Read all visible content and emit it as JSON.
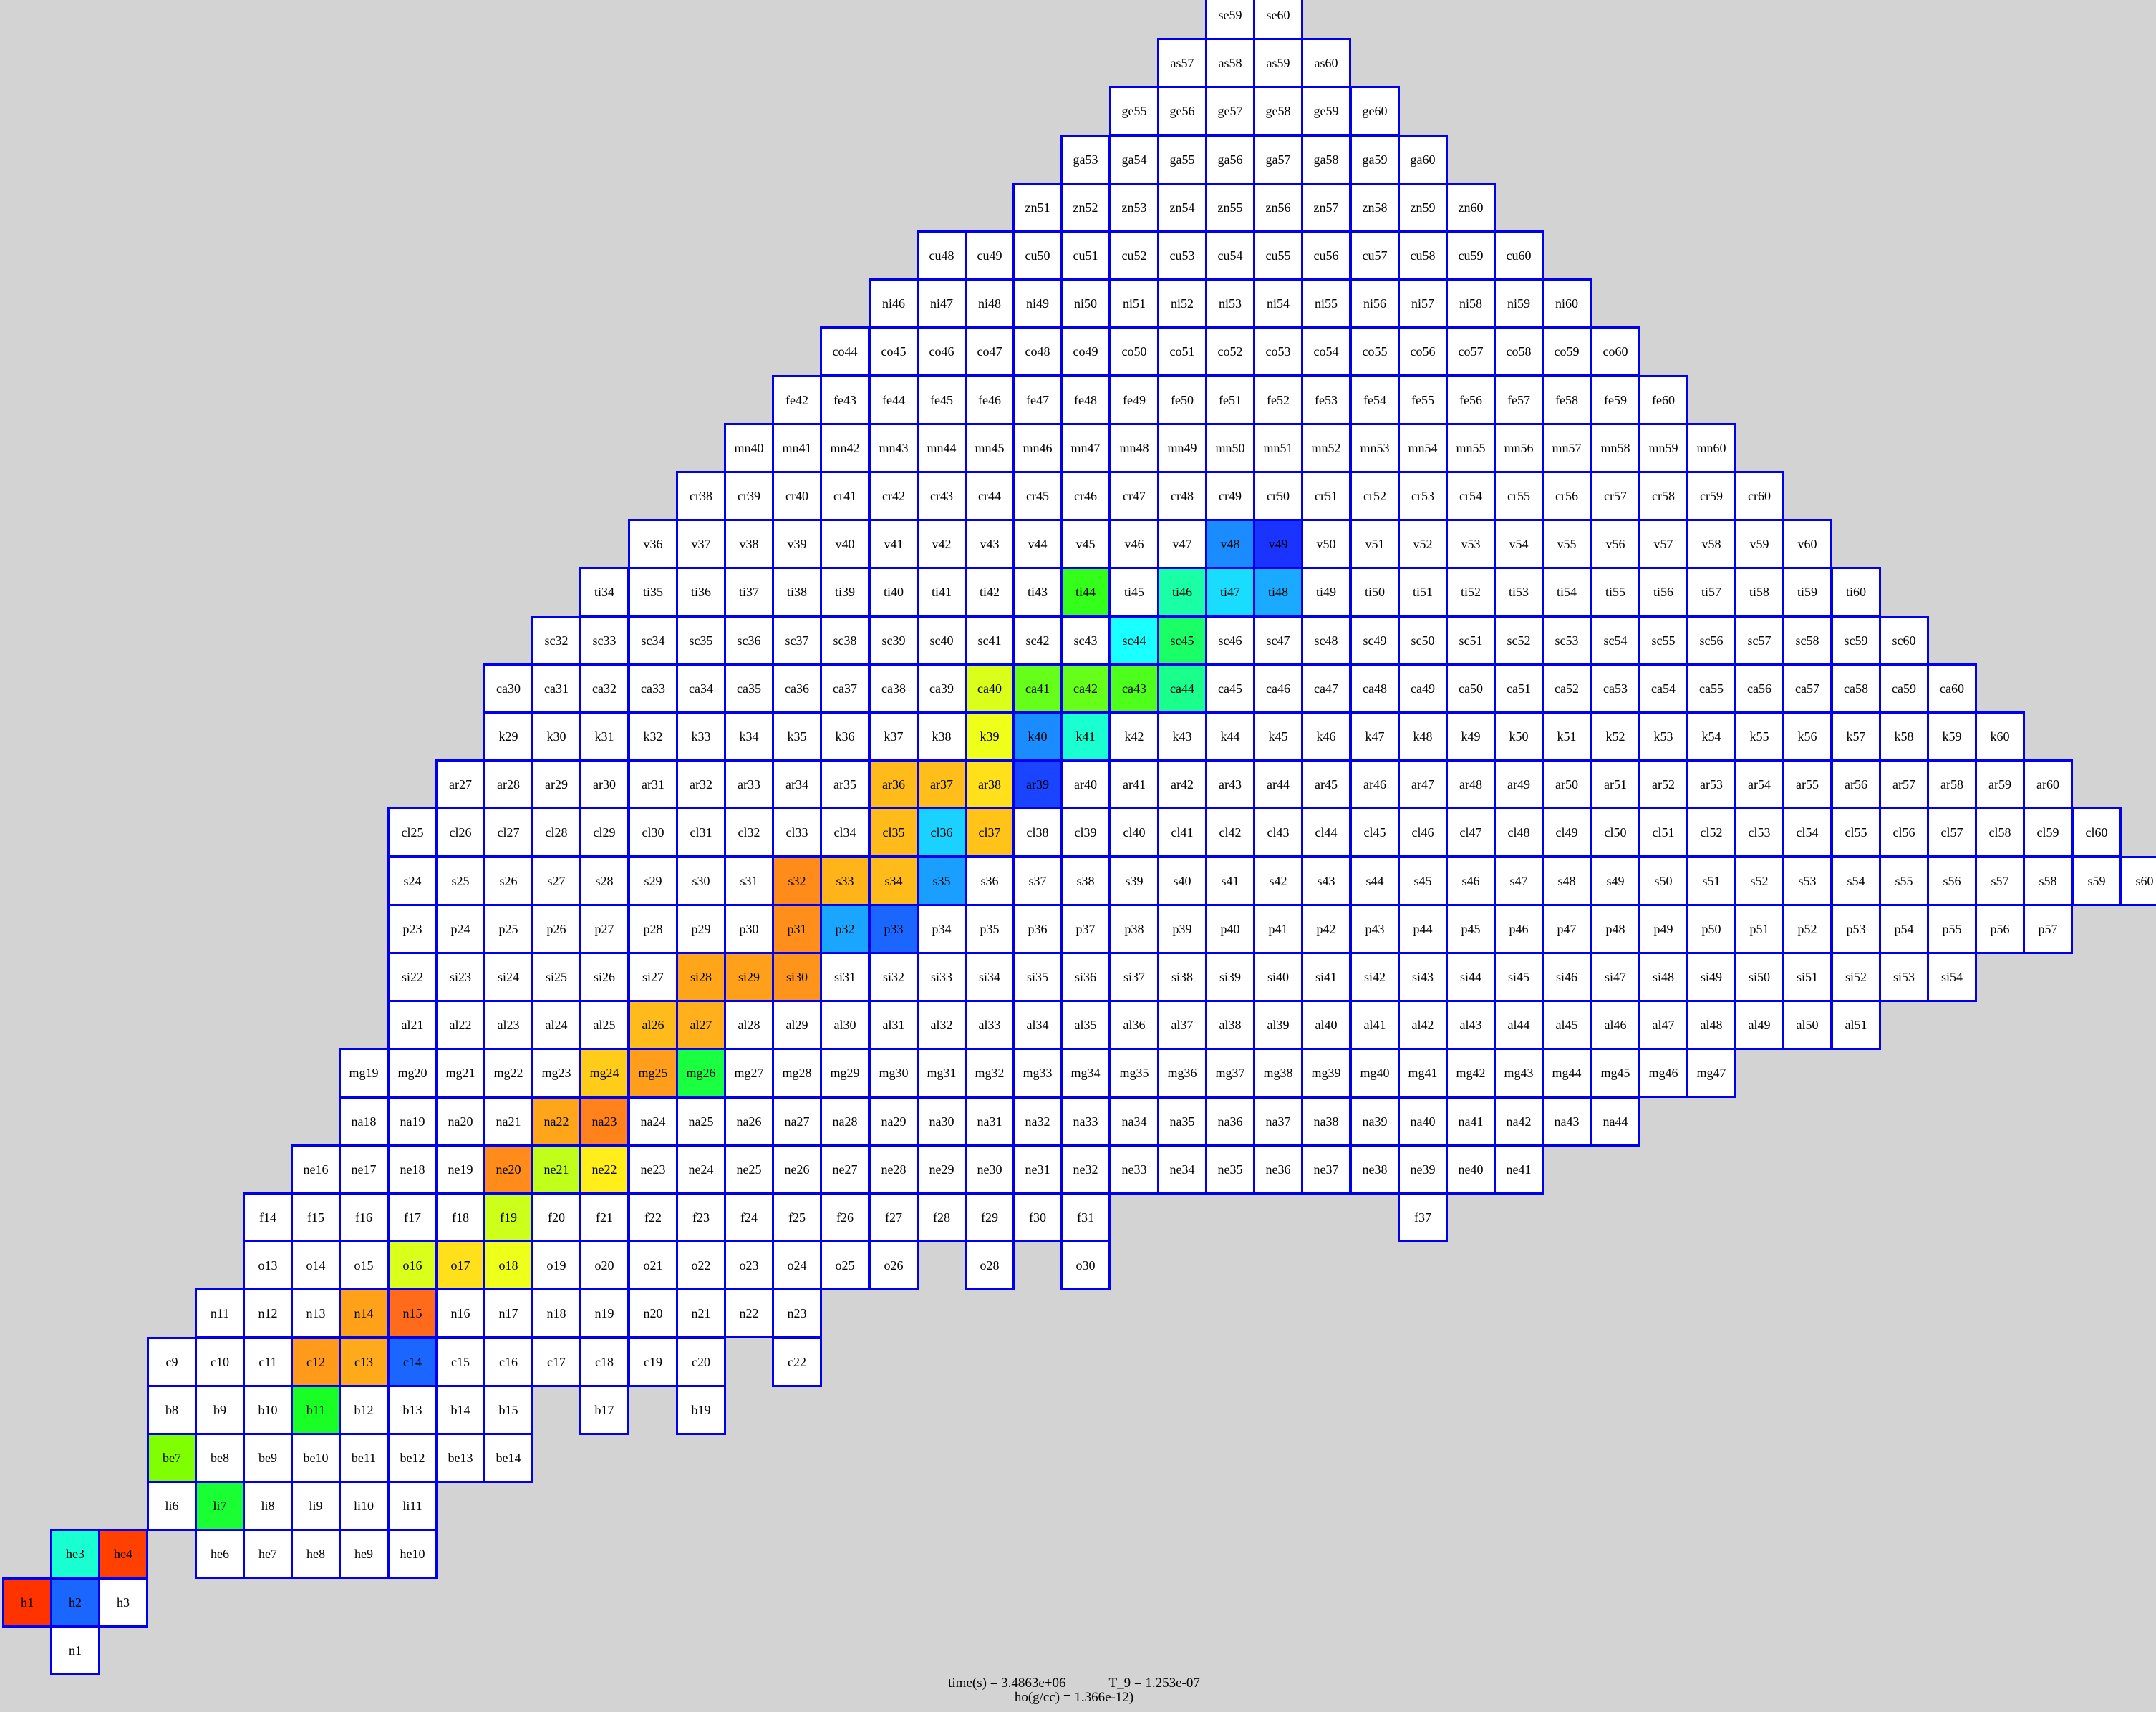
{
  "chart_data": {
    "type": "heatmap",
    "rows": [
      {
        "z": 0,
        "el": "n",
        "start": 1,
        "masses": [
          1
        ]
      },
      {
        "z": 1,
        "el": "h",
        "start": 0,
        "masses": [
          1,
          2,
          3
        ]
      },
      {
        "z": 2,
        "el": "he",
        "start": 1,
        "masses": [
          3,
          4,
          null,
          6,
          7,
          8,
          9,
          10
        ]
      },
      {
        "z": 3,
        "el": "li",
        "start": 3,
        "masses": [
          6,
          7,
          8,
          9,
          10,
          11
        ]
      },
      {
        "z": 4,
        "el": "be",
        "start": 3,
        "masses": [
          7,
          8,
          9,
          10,
          11,
          12,
          13,
          14
        ]
      },
      {
        "z": 5,
        "el": "b",
        "start": 3,
        "masses": [
          8,
          9,
          10,
          11,
          12,
          13,
          14,
          15,
          null,
          17,
          null,
          19
        ]
      },
      {
        "z": 6,
        "el": "c",
        "start": 3,
        "masses": [
          9,
          10,
          11,
          12,
          13,
          14,
          15,
          16,
          17,
          18,
          19,
          20,
          null,
          22
        ]
      },
      {
        "z": 7,
        "el": "n",
        "start": 4,
        "masses": [
          11,
          12,
          13,
          14,
          15,
          16,
          17,
          18,
          19,
          20,
          21,
          22,
          23
        ]
      },
      {
        "z": 8,
        "el": "o",
        "start": 5,
        "masses": [
          13,
          14,
          15,
          16,
          17,
          18,
          19,
          20,
          21,
          22,
          23,
          24,
          25,
          26,
          null,
          28,
          null,
          30
        ]
      },
      {
        "z": 9,
        "el": "f",
        "start": 5,
        "masses": [
          14,
          15,
          16,
          17,
          18,
          19,
          20,
          21,
          22,
          23,
          24,
          25,
          26,
          27,
          28,
          29,
          30,
          31,
          null,
          null,
          null,
          null,
          null,
          null,
          37
        ]
      },
      {
        "z": 10,
        "el": "ne",
        "start": 6,
        "masses": [
          16,
          17,
          18,
          19,
          20,
          21,
          22,
          23,
          24,
          25,
          26,
          27,
          28,
          29,
          30,
          31,
          32,
          33,
          34,
          35,
          36,
          37,
          38,
          39,
          40,
          41
        ]
      },
      {
        "z": 11,
        "el": "na",
        "start": 7,
        "masses": [
          18,
          19,
          20,
          21,
          22,
          23,
          24,
          25,
          26,
          27,
          28,
          29,
          30,
          31,
          32,
          33,
          34,
          35,
          36,
          37,
          38,
          39,
          40,
          41,
          42,
          43,
          44
        ]
      },
      {
        "z": 12,
        "el": "mg",
        "start": 7,
        "masses": [
          19,
          20,
          21,
          22,
          23,
          24,
          25,
          26,
          27,
          28,
          29,
          30,
          31,
          32,
          33,
          34,
          35,
          36,
          37,
          38,
          39,
          40,
          41,
          42,
          43,
          44,
          45,
          46,
          47
        ]
      },
      {
        "z": 13,
        "el": "al",
        "start": 8,
        "masses": [
          21,
          22,
          23,
          24,
          25,
          26,
          27,
          28,
          29,
          30,
          31,
          32,
          33,
          34,
          35,
          36,
          37,
          38,
          39,
          40,
          41,
          42,
          43,
          44,
          45,
          46,
          47,
          48,
          49,
          50,
          51
        ]
      },
      {
        "z": 14,
        "el": "si",
        "start": 8,
        "masses": [
          22,
          23,
          24,
          25,
          26,
          27,
          28,
          29,
          30,
          31,
          32,
          33,
          34,
          35,
          36,
          37,
          38,
          39,
          40,
          41,
          42,
          43,
          44,
          45,
          46,
          47,
          48,
          49,
          50,
          51,
          52,
          53,
          54
        ]
      },
      {
        "z": 15,
        "el": "p",
        "start": 8,
        "masses": [
          23,
          24,
          25,
          26,
          27,
          28,
          29,
          30,
          31,
          32,
          33,
          34,
          35,
          36,
          37,
          38,
          39,
          40,
          41,
          42,
          43,
          44,
          45,
          46,
          47,
          48,
          49,
          50,
          51,
          52,
          53,
          54,
          55,
          56,
          57
        ]
      },
      {
        "z": 16,
        "el": "s",
        "start": 8,
        "masses": [
          24,
          25,
          26,
          27,
          28,
          29,
          30,
          31,
          32,
          33,
          34,
          35,
          36,
          37,
          38,
          39,
          40,
          41,
          42,
          43,
          44,
          45,
          46,
          47,
          48,
          49,
          50,
          51,
          52,
          53,
          54,
          55,
          56,
          57,
          58,
          59,
          60
        ]
      },
      {
        "z": 17,
        "el": "cl",
        "start": 8,
        "masses": [
          25,
          26,
          27,
          28,
          29,
          30,
          31,
          32,
          33,
          34,
          35,
          36,
          37,
          38,
          39,
          40,
          41,
          42,
          43,
          44,
          45,
          46,
          47,
          48,
          49,
          50,
          51,
          52,
          53,
          54,
          55,
          56,
          57,
          58,
          59,
          60
        ]
      },
      {
        "z": 18,
        "el": "ar",
        "start": 9,
        "masses": [
          27,
          28,
          29,
          30,
          31,
          32,
          33,
          34,
          35,
          36,
          37,
          38,
          39,
          40,
          41,
          42,
          43,
          44,
          45,
          46,
          47,
          48,
          49,
          50,
          51,
          52,
          53,
          54,
          55,
          56,
          57,
          58,
          59,
          60
        ]
      },
      {
        "z": 19,
        "el": "k",
        "start": 10,
        "masses": [
          29,
          30,
          31,
          32,
          33,
          34,
          35,
          36,
          37,
          38,
          39,
          40,
          41,
          42,
          43,
          44,
          45,
          46,
          47,
          48,
          49,
          50,
          51,
          52,
          53,
          54,
          55,
          56,
          57,
          58,
          59,
          60
        ]
      },
      {
        "z": 20,
        "el": "ca",
        "start": 10,
        "masses": [
          30,
          31,
          32,
          33,
          34,
          35,
          36,
          37,
          38,
          39,
          40,
          41,
          42,
          43,
          44,
          45,
          46,
          47,
          48,
          49,
          50,
          51,
          52,
          53,
          54,
          55,
          56,
          57,
          58,
          59,
          60
        ]
      },
      {
        "z": 21,
        "el": "sc",
        "start": 11,
        "masses": [
          32,
          33,
          34,
          35,
          36,
          37,
          38,
          39,
          40,
          41,
          42,
          43,
          44,
          45,
          46,
          47,
          48,
          49,
          50,
          51,
          52,
          53,
          54,
          55,
          56,
          57,
          58,
          59,
          60
        ]
      },
      {
        "z": 22,
        "el": "ti",
        "start": 12,
        "masses": [
          34,
          35,
          36,
          37,
          38,
          39,
          40,
          41,
          42,
          43,
          44,
          45,
          46,
          47,
          48,
          49,
          50,
          51,
          52,
          53,
          54,
          55,
          56,
          57,
          58,
          59,
          60
        ]
      },
      {
        "z": 23,
        "el": "v",
        "start": 13,
        "masses": [
          36,
          37,
          38,
          39,
          40,
          41,
          42,
          43,
          44,
          45,
          46,
          47,
          48,
          49,
          50,
          51,
          52,
          53,
          54,
          55,
          56,
          57,
          58,
          59,
          60
        ]
      },
      {
        "z": 24,
        "el": "cr",
        "start": 14,
        "masses": [
          38,
          39,
          40,
          41,
          42,
          43,
          44,
          45,
          46,
          47,
          48,
          49,
          50,
          51,
          52,
          53,
          54,
          55,
          56,
          57,
          58,
          59,
          60
        ]
      },
      {
        "z": 25,
        "el": "mn",
        "start": 15,
        "masses": [
          40,
          41,
          42,
          43,
          44,
          45,
          46,
          47,
          48,
          49,
          50,
          51,
          52,
          53,
          54,
          55,
          56,
          57,
          58,
          59,
          60
        ]
      },
      {
        "z": 26,
        "el": "fe",
        "start": 16,
        "masses": [
          42,
          43,
          44,
          45,
          46,
          47,
          48,
          49,
          50,
          51,
          52,
          53,
          54,
          55,
          56,
          57,
          58,
          59,
          60
        ]
      },
      {
        "z": 27,
        "el": "co",
        "start": 17,
        "masses": [
          44,
          45,
          46,
          47,
          48,
          49,
          50,
          51,
          52,
          53,
          54,
          55,
          56,
          57,
          58,
          59,
          60
        ]
      },
      {
        "z": 28,
        "el": "ni",
        "start": 18,
        "masses": [
          46,
          47,
          48,
          49,
          50,
          51,
          52,
          53,
          54,
          55,
          56,
          57,
          58,
          59,
          60
        ]
      },
      {
        "z": 29,
        "el": "cu",
        "start": 19,
        "masses": [
          48,
          49,
          50,
          51,
          52,
          53,
          54,
          55,
          56,
          57,
          58,
          59,
          60
        ]
      },
      {
        "z": 30,
        "el": "zn",
        "start": 21,
        "masses": [
          51,
          52,
          53,
          54,
          55,
          56,
          57,
          58,
          59,
          60
        ]
      },
      {
        "z": 31,
        "el": "ga",
        "start": 22,
        "masses": [
          53,
          54,
          55,
          56,
          57,
          58,
          59,
          60
        ]
      },
      {
        "z": 32,
        "el": "ge",
        "start": 23,
        "masses": [
          55,
          56,
          57,
          58,
          59,
          60
        ]
      },
      {
        "z": 33,
        "el": "as",
        "start": 24,
        "masses": [
          57,
          58,
          59,
          60
        ]
      },
      {
        "z": 34,
        "el": "se",
        "start": 25,
        "masses": [
          59,
          60
        ]
      }
    ],
    "colors": {
      "h1": "#ff3300",
      "h2": "#1a66ff",
      "he3": "#1affd1",
      "he4": "#ff4000",
      "li7": "#19ff33",
      "be7": "#80ff00",
      "b11": "#19ff26",
      "c12": "#ff9a1a",
      "c13": "#ffaa1a",
      "c14": "#1a66ff",
      "n14": "#ffa21a",
      "n15": "#ff6b1a",
      "o16": "#d9ff1a",
      "o17": "#ffe01a",
      "o18": "#eeff1a",
      "f19": "#ccff1a",
      "ne20": "#ff8c1a",
      "ne21": "#bfff1a",
      "ne22": "#ffee1a",
      "na22": "#ffa51a",
      "na23": "#ff821a",
      "mg24": "#ffcc1a",
      "mg25": "#ff9e1a",
      "mg26": "#1aff40",
      "al26": "#ffbb1a",
      "al27": "#ffb01a",
      "si28": "#ffa51a",
      "si29": "#ffa01a",
      "si30": "#ff941a",
      "p31": "#ff8f1a",
      "p32": "#1aa6ff",
      "p33": "#1a66ff",
      "s32": "#ff8c1a",
      "s33": "#ffb51a",
      "s34": "#ffbb1a",
      "s35": "#1a9fff",
      "cl35": "#ffbb1a",
      "cl36": "#1ad1ff",
      "cl37": "#ffc31a",
      "ar36": "#ffbb1a",
      "ar37": "#ffbe1a",
      "ar38": "#ffe01a",
      "ar39": "#1a44ff",
      "k39": "#f0ff1a",
      "k40": "#1a8cff",
      "k41": "#1affd1",
      "ca40": "#d9ff1a",
      "ca41": "#66ff1a",
      "ca42": "#66ff1a",
      "ca43": "#4dff1a",
      "ca44": "#1aff8c",
      "sc44": "#1affff",
      "sc45": "#1aff66",
      "ti44": "#33ff1a",
      "ti46": "#1affa6",
      "ti47": "#1adcff",
      "ti48": "#1aaaff",
      "v48": "#1a8cff",
      "v49": "#1a33ff"
    },
    "annotations": [
      "time(s) = 3.4863e+06",
      "T_9 = 1.253e-07",
      "ho(g/cc) = 1.366e-12)"
    ]
  },
  "footer": {
    "time": "time(s) = 3.4863e+06",
    "temp": "T_9 = 1.253e-07",
    "rho": "ho(g/cc) = 1.366e-12)"
  }
}
